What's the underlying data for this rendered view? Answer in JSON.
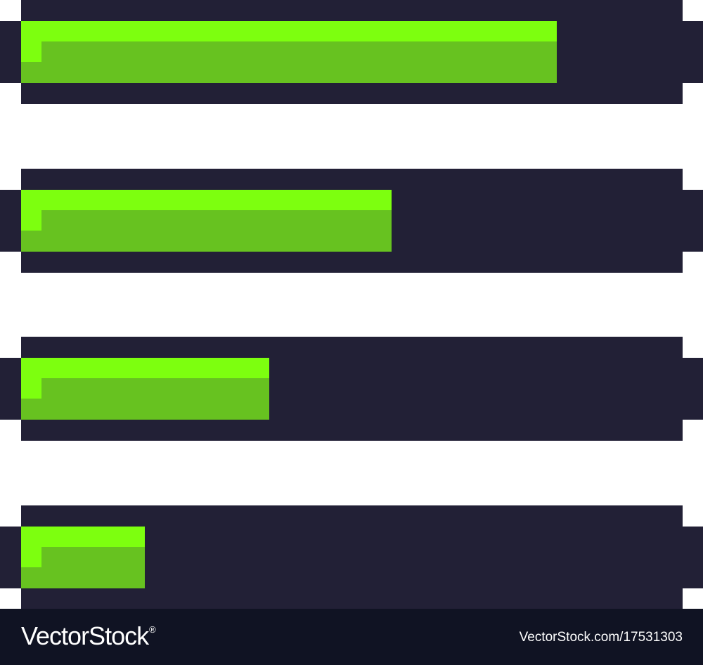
{
  "colors": {
    "background": "#ffffff",
    "bar_track": "#222036",
    "fill": "#67c220",
    "fill_highlight": "#7dff0f",
    "footer_background": "#101323",
    "footer_text": "#ffffff"
  },
  "progress_bars": [
    {
      "level": 0.81
    },
    {
      "level": 0.56
    },
    {
      "level": 0.375
    },
    {
      "level": 0.187
    }
  ],
  "footer": {
    "logo_text": "VectorStock",
    "logo_mark": "®",
    "url": "VectorStock.com/17531303"
  }
}
